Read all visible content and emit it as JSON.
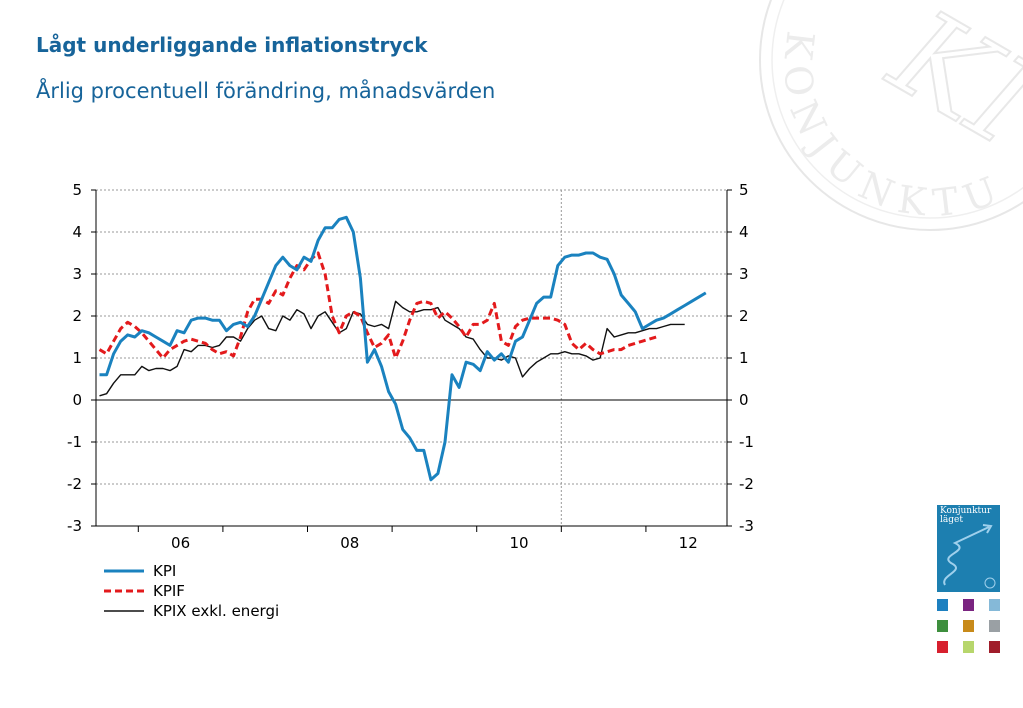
{
  "header": {
    "title": "Lågt underliggande inflationstryck",
    "subtitle": "Årlig procentuell förändring, månadsvärden"
  },
  "chart_data": {
    "type": "line",
    "title": "Lågt underliggande inflationstryck",
    "subtitle": "Årlig procentuell förändring, månadsvärden",
    "xlabel": "",
    "ylabel": "",
    "ylim": [
      -3,
      5
    ],
    "yticks": [
      -3,
      -2,
      -1,
      0,
      1,
      2,
      3,
      4,
      5
    ],
    "xticks": [
      {
        "label": "06",
        "year": 2006
      },
      {
        "label": "08",
        "year": 2008
      },
      {
        "label": "10",
        "year": 2010
      },
      {
        "label": "12",
        "year": 2012
      }
    ],
    "x_start": "2005-07",
    "x_end": "2012-12",
    "forecast_line_at": "2011-01",
    "grid": true,
    "legend_position": "bottom-left",
    "series": [
      {
        "name": "KPI",
        "color": "#1a82bf",
        "dash": "solid",
        "values": [
          0.6,
          0.6,
          1.1,
          1.4,
          1.55,
          1.5,
          1.65,
          1.6,
          1.5,
          1.4,
          1.3,
          1.65,
          1.6,
          1.9,
          1.95,
          1.95,
          1.9,
          1.9,
          1.65,
          1.8,
          1.85,
          1.75,
          2.0,
          2.4,
          2.8,
          3.2,
          3.4,
          3.2,
          3.1,
          3.4,
          3.3,
          3.8,
          4.1,
          4.1,
          4.3,
          4.35,
          4.0,
          2.9,
          0.9,
          1.2,
          0.8,
          0.2,
          -0.1,
          -0.7,
          -0.9,
          -1.2,
          -1.2,
          -1.9,
          -1.75,
          -1.0,
          0.6,
          0.3,
          0.9,
          0.85,
          0.7,
          1.15,
          0.95,
          1.1,
          0.9,
          1.4,
          1.5,
          1.9,
          2.3,
          2.45,
          2.45,
          3.2,
          3.4,
          3.45,
          3.45,
          3.5,
          3.5,
          3.4,
          3.35,
          3.0,
          2.5,
          2.3,
          2.1,
          1.7,
          1.8,
          1.9,
          1.95,
          2.05,
          2.15,
          2.25,
          2.35,
          2.45,
          2.55
        ]
      },
      {
        "name": "KPIF",
        "color": "#e31a1c",
        "dash": "dashed",
        "values": [
          1.2,
          1.1,
          1.4,
          1.7,
          1.85,
          1.75,
          1.6,
          1.4,
          1.2,
          1.0,
          1.2,
          1.3,
          1.4,
          1.45,
          1.4,
          1.35,
          1.2,
          1.1,
          1.15,
          1.05,
          1.5,
          2.1,
          2.4,
          2.4,
          2.3,
          2.6,
          2.5,
          2.9,
          3.2,
          3.1,
          3.35,
          3.5,
          3.0,
          2.0,
          1.6,
          2.0,
          2.1,
          2.0,
          1.6,
          1.25,
          1.35,
          1.55,
          1.0,
          1.4,
          1.9,
          2.3,
          2.35,
          2.3,
          1.95,
          2.1,
          1.95,
          1.75,
          1.5,
          1.8,
          1.8,
          1.9,
          2.3,
          1.4,
          1.3,
          1.75,
          1.9,
          1.95,
          1.95,
          1.95,
          1.95,
          1.9,
          1.8,
          1.35,
          1.2,
          1.35,
          1.2,
          1.1,
          1.15,
          1.2,
          1.2,
          1.3,
          1.35,
          1.4,
          1.45,
          1.5
        ]
      },
      {
        "name": "KPIX exkl. energi",
        "color": "#111111",
        "dash": "solid",
        "values": [
          0.1,
          0.15,
          0.4,
          0.6,
          0.6,
          0.6,
          0.8,
          0.7,
          0.75,
          0.75,
          0.7,
          0.8,
          1.2,
          1.15,
          1.3,
          1.3,
          1.25,
          1.3,
          1.5,
          1.5,
          1.4,
          1.7,
          1.9,
          2.0,
          1.7,
          1.65,
          2.0,
          1.9,
          2.15,
          2.05,
          1.7,
          2.0,
          2.1,
          1.85,
          1.6,
          1.7,
          2.1,
          2.05,
          1.8,
          1.75,
          1.8,
          1.7,
          2.35,
          2.2,
          2.1,
          2.1,
          2.15,
          2.15,
          2.2,
          1.9,
          1.8,
          1.7,
          1.5,
          1.45,
          1.2,
          1.0,
          1.0,
          0.95,
          1.05,
          1.0,
          0.55,
          0.75,
          0.9,
          1.0,
          1.1,
          1.1,
          1.15,
          1.1,
          1.1,
          1.05,
          0.95,
          1.0,
          1.7,
          1.5,
          1.55,
          1.6,
          1.6,
          1.65,
          1.7,
          1.7,
          1.75,
          1.8,
          1.8,
          1.8
        ]
      }
    ]
  },
  "legend": [
    {
      "label": "KPI"
    },
    {
      "label": "KPIF"
    },
    {
      "label": "KPIX exkl. energi"
    }
  ],
  "decor": {
    "seal_text": "KONJUNKTURINSTITUTET",
    "seal_initials": "KI",
    "report_thumbnail": {
      "title_line1": "Konjunktur",
      "title_line2": "läget"
    },
    "square_colors": [
      "#1d80c0",
      "#7a2480",
      "#85b9d8",
      "#3e8f3e",
      "#c88a1a",
      "#9aa0a4",
      "#d7202e",
      "#b7d66c",
      "#a01d2a"
    ]
  }
}
